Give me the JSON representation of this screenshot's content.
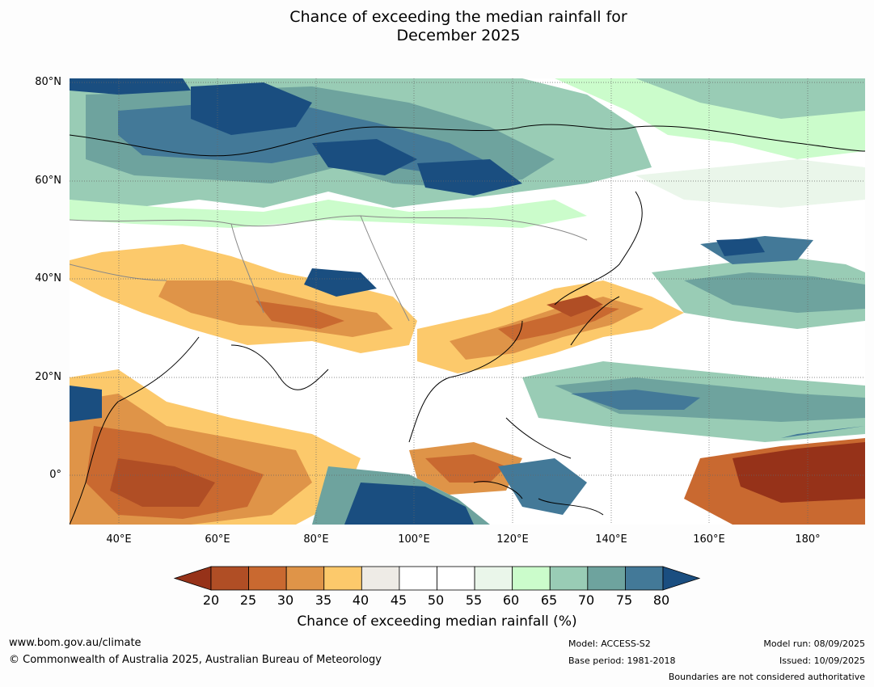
{
  "title": {
    "line1": "Chance of exceeding the median rainfall for",
    "line2": "December 2025"
  },
  "map": {
    "lat_labels": [
      "80°N",
      "60°N",
      "40°N",
      "20°N",
      "0°"
    ],
    "lon_labels": [
      "40°E",
      "60°E",
      "80°E",
      "100°E",
      "120°E",
      "140°E",
      "160°E",
      "180°"
    ],
    "lat_values": [
      80,
      60,
      40,
      20,
      0
    ],
    "lon_values": [
      40,
      60,
      80,
      100,
      120,
      140,
      160,
      180
    ],
    "extent": {
      "lon_min": 30,
      "lon_max": 191.5,
      "lat_min": -10,
      "lat_max": 80.7
    },
    "ocean_color": "#ffffff"
  },
  "colorbar": {
    "ticks": [
      "20",
      "25",
      "30",
      "35",
      "40",
      "45",
      "50",
      "55",
      "60",
      "65",
      "70",
      "75",
      "80"
    ],
    "colors": [
      "#963219",
      "#b04e25",
      "#c96930",
      "#df9448",
      "#fcc96b",
      "#eeebe6",
      "#ffffff",
      "#ffffff",
      "#eaf6ea",
      "#cbfccb",
      "#99ccb5",
      "#6ea39e",
      "#437998",
      "#1a4e80"
    ],
    "label": "Chance of exceeding median rainfall (%)"
  },
  "footer": {
    "url": "www.bom.gov.au/climate",
    "copyright": "© Commonwealth of Australia 2025, Australian Bureau of Meteorology",
    "model": "Model: ACCESS-S2",
    "base_period": "Base period: 1981-2018",
    "model_run": "Model run: 08/09/2025",
    "issued": "Issued: 10/09/2025",
    "boundaries": "Boundaries are not considered authoritative"
  }
}
